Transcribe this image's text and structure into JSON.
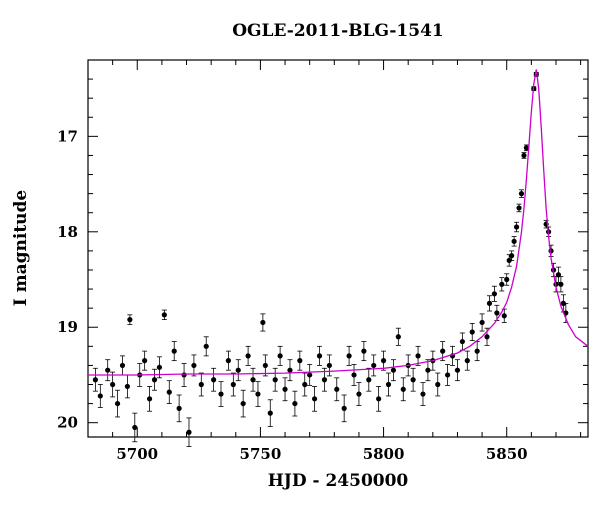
{
  "chart_data": {
    "type": "scatter",
    "title": "OGLE-2011-BLG-1541",
    "xlabel": "HJD - 2450000",
    "ylabel": "I magnitude",
    "xlim": [
      5680,
      5883
    ],
    "ylim": [
      20.15,
      16.2
    ],
    "y_inverted": true,
    "xticks": [
      5700,
      5750,
      5800,
      5850
    ],
    "yticks": [
      17,
      18,
      19,
      20
    ],
    "grid": false,
    "legend": "none",
    "colors": {
      "points": "#000000",
      "model": "#cc00cc"
    },
    "model": {
      "name": "microlensing fit",
      "baseline_mag": 19.5,
      "peak_t": 5862,
      "peak_mag": 16.3,
      "x": [
        5680,
        5700,
        5720,
        5740,
        5760,
        5780,
        5800,
        5810,
        5820,
        5830,
        5835,
        5840,
        5845,
        5848,
        5850,
        5852,
        5854,
        5856,
        5857,
        5858,
        5859,
        5860,
        5861,
        5862,
        5863,
        5864,
        5865,
        5866,
        5867,
        5868,
        5870,
        5872,
        5875,
        5878,
        5883
      ],
      "y": [
        19.5,
        19.5,
        19.49,
        19.49,
        19.48,
        19.46,
        19.43,
        19.4,
        19.35,
        19.27,
        19.2,
        19.1,
        18.96,
        18.84,
        18.74,
        18.58,
        18.36,
        18.0,
        17.75,
        17.45,
        17.1,
        16.75,
        16.45,
        16.3,
        16.5,
        16.9,
        17.35,
        17.75,
        18.05,
        18.28,
        18.58,
        18.78,
        18.97,
        19.1,
        19.2
      ]
    },
    "points": [
      {
        "x": 5683,
        "y": 19.55,
        "err": 0.12
      },
      {
        "x": 5685,
        "y": 19.72,
        "err": 0.12
      },
      {
        "x": 5688,
        "y": 19.45,
        "err": 0.11
      },
      {
        "x": 5690,
        "y": 19.6,
        "err": 0.13
      },
      {
        "x": 5692,
        "y": 19.8,
        "err": 0.14
      },
      {
        "x": 5694,
        "y": 19.4,
        "err": 0.1
      },
      {
        "x": 5696,
        "y": 19.62,
        "err": 0.12
      },
      {
        "x": 5697,
        "y": 18.92,
        "err": 0.05
      },
      {
        "x": 5699,
        "y": 20.05,
        "err": 0.15
      },
      {
        "x": 5701,
        "y": 19.5,
        "err": 0.12
      },
      {
        "x": 5703,
        "y": 19.35,
        "err": 0.1
      },
      {
        "x": 5705,
        "y": 19.75,
        "err": 0.13
      },
      {
        "x": 5707,
        "y": 19.55,
        "err": 0.11
      },
      {
        "x": 5709,
        "y": 19.42,
        "err": 0.11
      },
      {
        "x": 5711,
        "y": 18.87,
        "err": 0.05
      },
      {
        "x": 5713,
        "y": 19.68,
        "err": 0.12
      },
      {
        "x": 5715,
        "y": 19.25,
        "err": 0.1
      },
      {
        "x": 5717,
        "y": 19.85,
        "err": 0.14
      },
      {
        "x": 5719,
        "y": 19.5,
        "err": 0.12
      },
      {
        "x": 5721,
        "y": 20.1,
        "err": 0.15
      },
      {
        "x": 5723,
        "y": 19.4,
        "err": 0.11
      },
      {
        "x": 5726,
        "y": 19.6,
        "err": 0.12
      },
      {
        "x": 5728,
        "y": 19.2,
        "err": 0.1
      },
      {
        "x": 5731,
        "y": 19.55,
        "err": 0.12
      },
      {
        "x": 5734,
        "y": 19.7,
        "err": 0.13
      },
      {
        "x": 5737,
        "y": 19.35,
        "err": 0.1
      },
      {
        "x": 5739,
        "y": 19.6,
        "err": 0.12
      },
      {
        "x": 5741,
        "y": 19.45,
        "err": 0.11
      },
      {
        "x": 5743,
        "y": 19.8,
        "err": 0.14
      },
      {
        "x": 5745,
        "y": 19.3,
        "err": 0.1
      },
      {
        "x": 5747,
        "y": 19.55,
        "err": 0.12
      },
      {
        "x": 5749,
        "y": 19.7,
        "err": 0.13
      },
      {
        "x": 5751,
        "y": 18.95,
        "err": 0.09
      },
      {
        "x": 5752,
        "y": 19.4,
        "err": 0.11
      },
      {
        "x": 5754,
        "y": 19.9,
        "err": 0.14
      },
      {
        "x": 5756,
        "y": 19.55,
        "err": 0.12
      },
      {
        "x": 5758,
        "y": 19.3,
        "err": 0.1
      },
      {
        "x": 5760,
        "y": 19.65,
        "err": 0.12
      },
      {
        "x": 5762,
        "y": 19.45,
        "err": 0.11
      },
      {
        "x": 5764,
        "y": 19.8,
        "err": 0.13
      },
      {
        "x": 5766,
        "y": 19.35,
        "err": 0.1
      },
      {
        "x": 5768,
        "y": 19.6,
        "err": 0.12
      },
      {
        "x": 5770,
        "y": 19.5,
        "err": 0.11
      },
      {
        "x": 5772,
        "y": 19.75,
        "err": 0.13
      },
      {
        "x": 5774,
        "y": 19.3,
        "err": 0.1
      },
      {
        "x": 5776,
        "y": 19.55,
        "err": 0.12
      },
      {
        "x": 5778,
        "y": 19.4,
        "err": 0.11
      },
      {
        "x": 5781,
        "y": 19.65,
        "err": 0.12
      },
      {
        "x": 5784,
        "y": 19.85,
        "err": 0.14
      },
      {
        "x": 5786,
        "y": 19.3,
        "err": 0.1
      },
      {
        "x": 5788,
        "y": 19.5,
        "err": 0.11
      },
      {
        "x": 5790,
        "y": 19.7,
        "err": 0.12
      },
      {
        "x": 5792,
        "y": 19.25,
        "err": 0.1
      },
      {
        "x": 5794,
        "y": 19.55,
        "err": 0.12
      },
      {
        "x": 5796,
        "y": 19.4,
        "err": 0.11
      },
      {
        "x": 5798,
        "y": 19.75,
        "err": 0.13
      },
      {
        "x": 5800,
        "y": 19.35,
        "err": 0.1
      },
      {
        "x": 5802,
        "y": 19.6,
        "err": 0.12
      },
      {
        "x": 5804,
        "y": 19.45,
        "err": 0.11
      },
      {
        "x": 5806,
        "y": 19.1,
        "err": 0.09
      },
      {
        "x": 5808,
        "y": 19.65,
        "err": 0.12
      },
      {
        "x": 5810,
        "y": 19.4,
        "err": 0.11
      },
      {
        "x": 5812,
        "y": 19.55,
        "err": 0.12
      },
      {
        "x": 5814,
        "y": 19.3,
        "err": 0.1
      },
      {
        "x": 5816,
        "y": 19.7,
        "err": 0.12
      },
      {
        "x": 5818,
        "y": 19.45,
        "err": 0.11
      },
      {
        "x": 5820,
        "y": 19.35,
        "err": 0.1
      },
      {
        "x": 5822,
        "y": 19.6,
        "err": 0.12
      },
      {
        "x": 5824,
        "y": 19.25,
        "err": 0.1
      },
      {
        "x": 5826,
        "y": 19.5,
        "err": 0.11
      },
      {
        "x": 5828,
        "y": 19.3,
        "err": 0.1
      },
      {
        "x": 5830,
        "y": 19.45,
        "err": 0.11
      },
      {
        "x": 5832,
        "y": 19.15,
        "err": 0.09
      },
      {
        "x": 5834,
        "y": 19.35,
        "err": 0.1
      },
      {
        "x": 5836,
        "y": 19.05,
        "err": 0.09
      },
      {
        "x": 5838,
        "y": 19.25,
        "err": 0.1
      },
      {
        "x": 5840,
        "y": 18.95,
        "err": 0.09
      },
      {
        "x": 5842,
        "y": 19.1,
        "err": 0.09
      },
      {
        "x": 5843,
        "y": 18.75,
        "err": 0.08
      },
      {
        "x": 5845,
        "y": 18.65,
        "err": 0.08
      },
      {
        "x": 5846,
        "y": 18.85,
        "err": 0.08
      },
      {
        "x": 5848,
        "y": 18.55,
        "err": 0.07
      },
      {
        "x": 5849,
        "y": 18.88,
        "err": 0.07
      },
      {
        "x": 5850,
        "y": 18.5,
        "err": 0.06
      },
      {
        "x": 5851,
        "y": 18.3,
        "err": 0.06
      },
      {
        "x": 5852,
        "y": 18.25,
        "err": 0.05
      },
      {
        "x": 5853,
        "y": 18.1,
        "err": 0.05
      },
      {
        "x": 5854,
        "y": 17.95,
        "err": 0.05
      },
      {
        "x": 5855,
        "y": 17.75,
        "err": 0.04
      },
      {
        "x": 5856,
        "y": 17.6,
        "err": 0.04
      },
      {
        "x": 5857,
        "y": 17.2,
        "err": 0.03
      },
      {
        "x": 5858,
        "y": 17.12,
        "err": 0.03
      },
      {
        "x": 5861,
        "y": 16.5,
        "err": 0.02
      },
      {
        "x": 5862,
        "y": 16.35,
        "err": 0.02
      },
      {
        "x": 5866,
        "y": 17.92,
        "err": 0.04
      },
      {
        "x": 5867,
        "y": 18.0,
        "err": 0.05
      },
      {
        "x": 5868,
        "y": 18.2,
        "err": 0.06
      },
      {
        "x": 5869,
        "y": 18.4,
        "err": 0.07
      },
      {
        "x": 5870,
        "y": 18.55,
        "err": 0.08
      },
      {
        "x": 5871,
        "y": 18.45,
        "err": 0.08
      },
      {
        "x": 5872,
        "y": 18.55,
        "err": 0.08
      },
      {
        "x": 5873,
        "y": 18.75,
        "err": 0.09
      },
      {
        "x": 5874,
        "y": 18.85,
        "err": 0.1
      }
    ]
  }
}
